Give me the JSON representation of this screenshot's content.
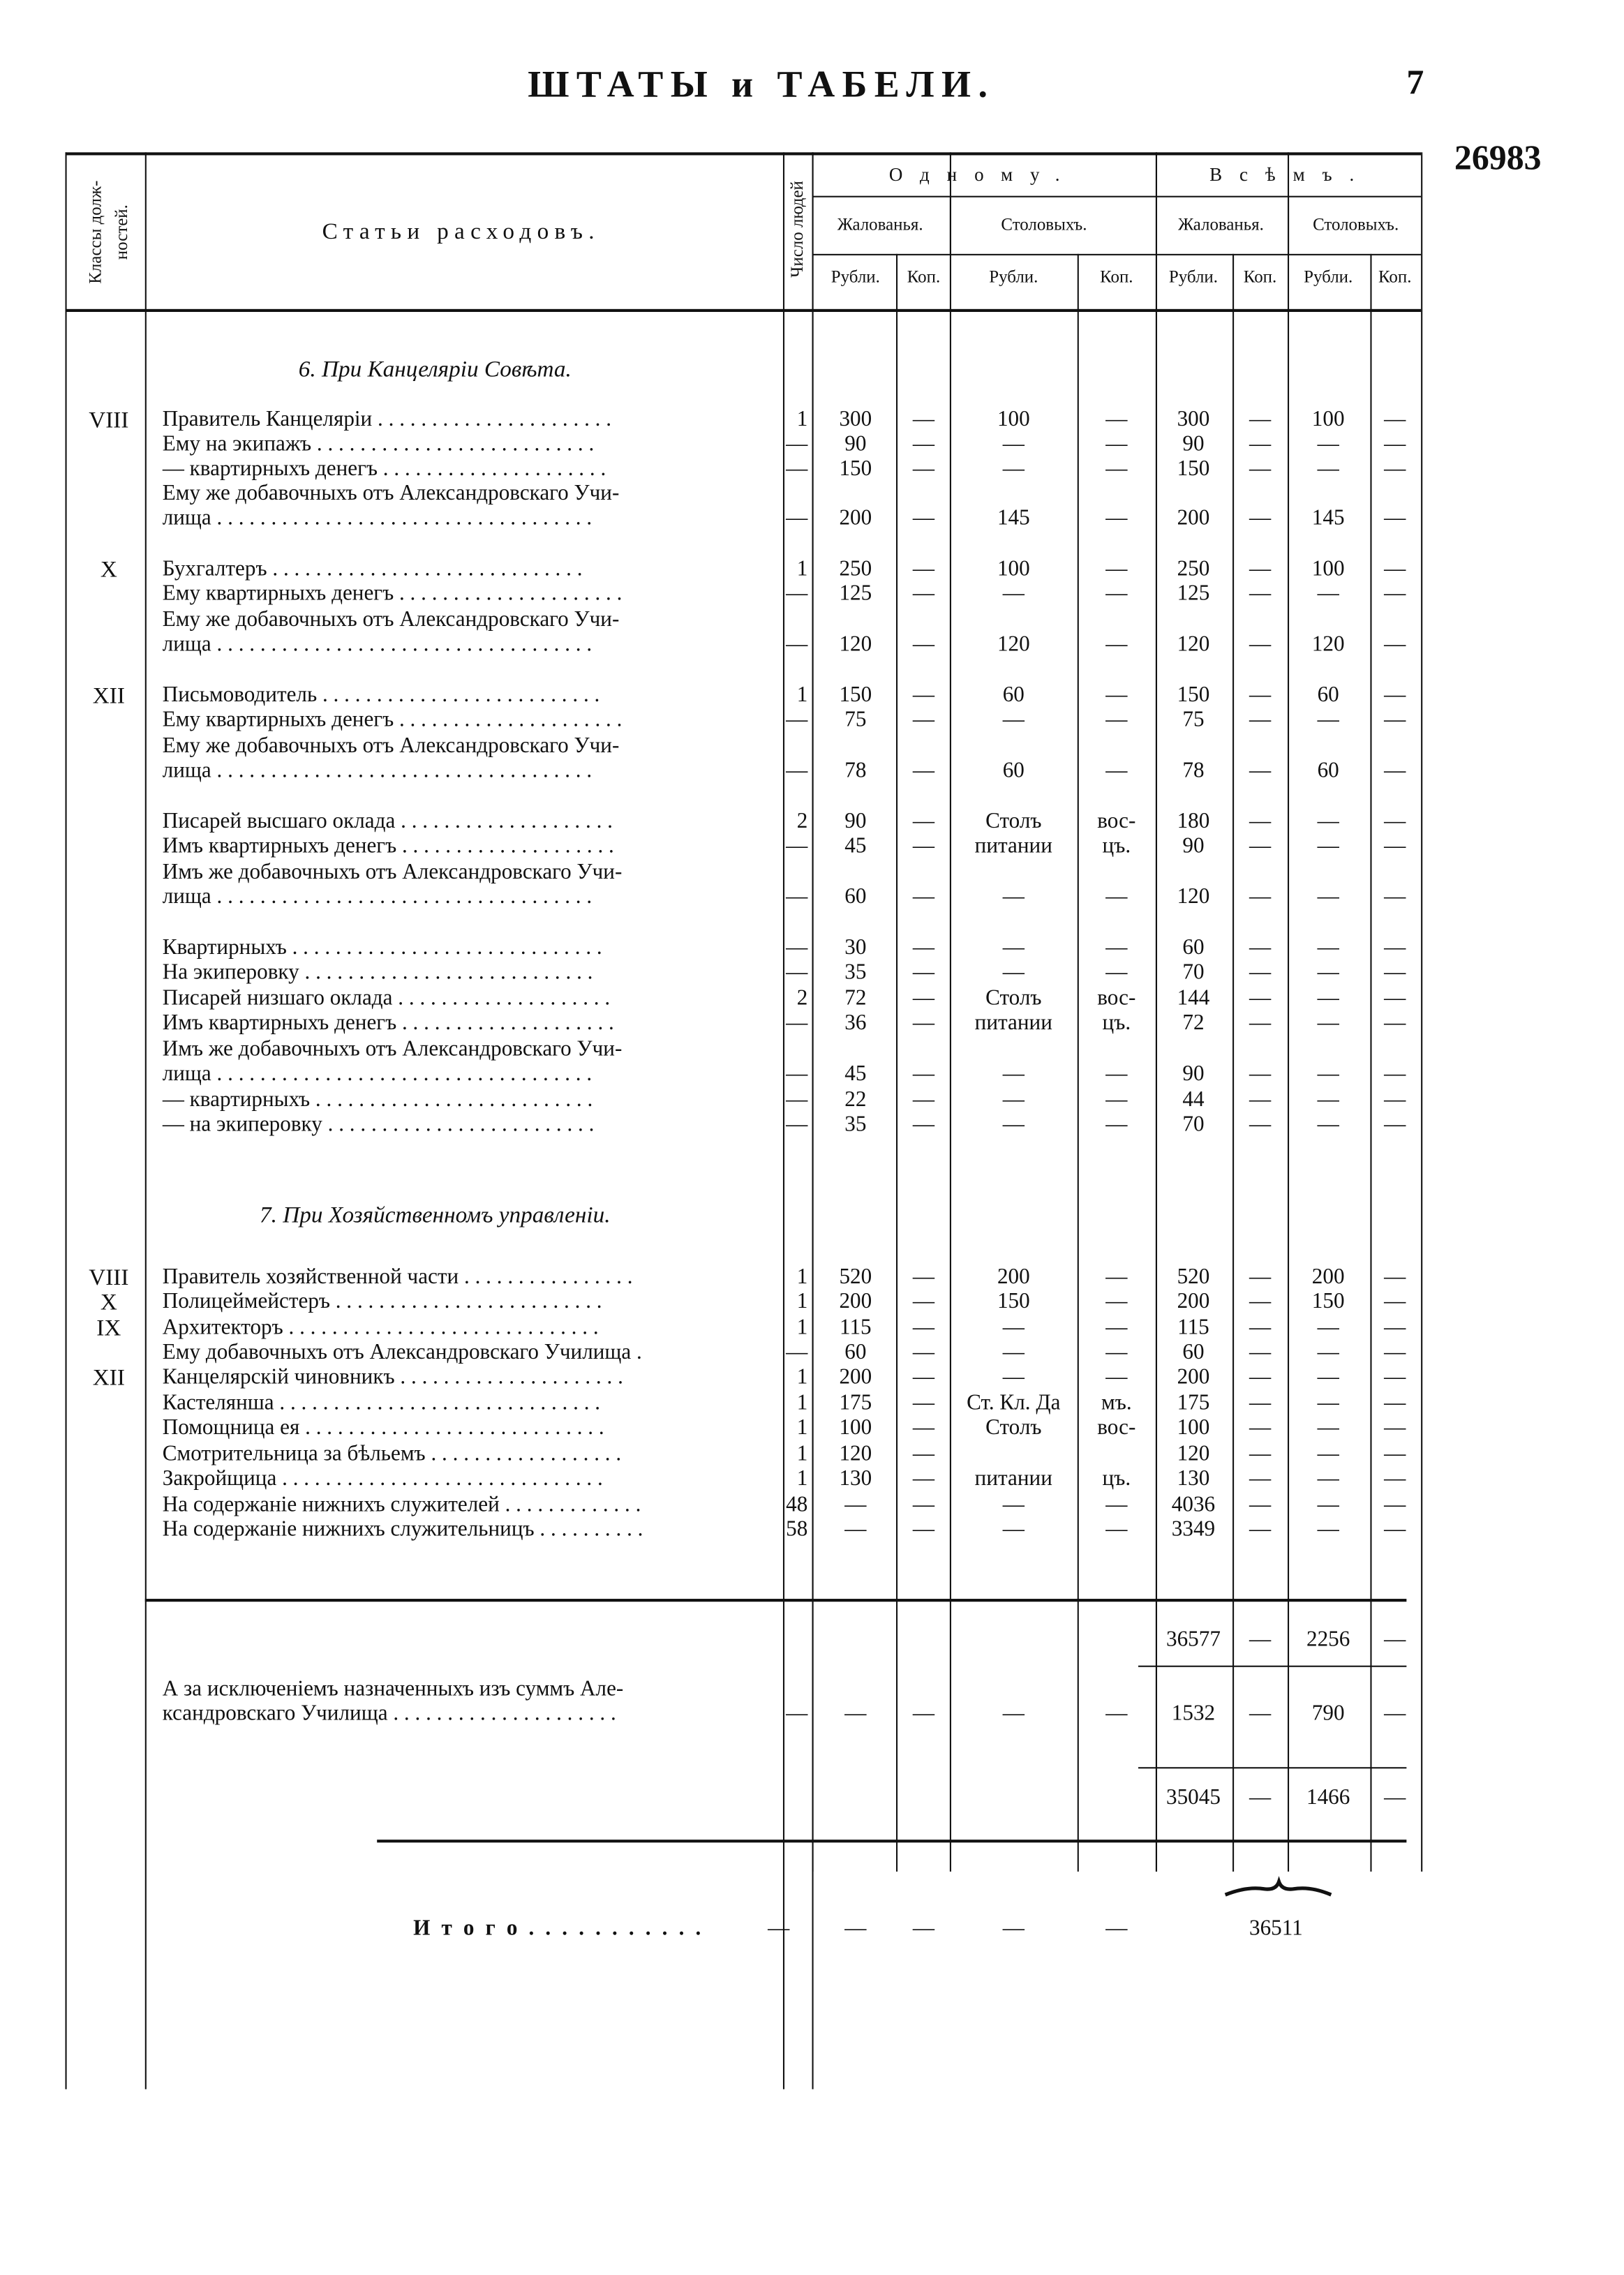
{
  "header": {
    "title": "ШТАТЫ и ТАБЕЛИ.",
    "page": "7",
    "number": "26983"
  },
  "columns": {
    "classes": [
      "Классы долж-",
      "ностей."
    ],
    "items": "Статьи расходовъ.",
    "people": "Число людей",
    "one": "Одному.",
    "all": "Всѣмъ.",
    "sub": [
      "Жалованья.",
      "Столовыхъ.",
      "Жалованья.",
      "Столовыхъ."
    ],
    "units": [
      "Рубли.",
      "Коп.",
      "Рубли.",
      "Коп.",
      "Рубли.",
      "Коп.",
      "Рубли.",
      "Коп."
    ]
  },
  "sections": [
    {
      "title": "6. При Канцеляріи Совѣта.",
      "rows": [
        {
          "class": "VIII",
          "lines": [
            "Правитель Канцеляріи . . . . . . . . . . . . . . . . . . . . . ."
          ],
          "count": "1",
          "cells": [
            "300",
            "—",
            "100",
            "—",
            "300",
            "—",
            "100",
            "—"
          ]
        },
        {
          "lines": [
            "Ему на экипажъ . . . . . . . . . . . . . . . . . . . . . . . . . ."
          ],
          "count": "—",
          "cells": [
            "90",
            "—",
            "—",
            "—",
            "90",
            "—",
            "—",
            "—"
          ]
        },
        {
          "lines": [
            "— квартирныхъ денегъ . . . . . . . . . . . . . . . . . . . . ."
          ],
          "count": "—",
          "cells": [
            "150",
            "—",
            "—",
            "—",
            "150",
            "—",
            "—",
            "—"
          ]
        },
        {
          "lines": [
            "Ему же добавочныхъ отъ Александровскаго Учи-",
            "лища . . . . . . . . . . . . . . . . . . . . . . . . . . . . . . . . . . ."
          ],
          "count": "—",
          "cells": [
            "200",
            "—",
            "145",
            "—",
            "200",
            "—",
            "145",
            "—"
          ]
        },
        {
          "class": "X",
          "lines": [
            "Бухгалтеръ . . . . . . . . . . . . . . . . . . . . . . . . . . . . ."
          ],
          "count": "1",
          "cells": [
            "250",
            "—",
            "100",
            "—",
            "250",
            "—",
            "100",
            "—"
          ]
        },
        {
          "lines": [
            "Ему квартирныхъ денегъ . . . . . . . . . . . . . . . . . . . . ."
          ],
          "count": "—",
          "cells": [
            "125",
            "—",
            "—",
            "—",
            "125",
            "—",
            "—",
            "—"
          ]
        },
        {
          "lines": [
            "Ему же добавочныхъ отъ Александровскаго Учи-",
            "лища . . . . . . . . . . . . . . . . . . . . . . . . . . . . . . . . . . ."
          ],
          "count": "—",
          "cells": [
            "120",
            "—",
            "120",
            "—",
            "120",
            "—",
            "120",
            "—"
          ]
        },
        {
          "class": "XII",
          "lines": [
            "Письмоводитель . . . . . . . . . . . . . . . . . . . . . . . . . ."
          ],
          "count": "1",
          "cells": [
            "150",
            "—",
            "60",
            "—",
            "150",
            "—",
            "60",
            "—"
          ]
        },
        {
          "lines": [
            "Ему квартирныхъ денегъ . . . . . . . . . . . . . . . . . . . . ."
          ],
          "count": "—",
          "cells": [
            "75",
            "—",
            "—",
            "—",
            "75",
            "—",
            "—",
            "—"
          ]
        },
        {
          "lines": [
            "Ему же добавочныхъ отъ Александровскаго Учи-",
            "лища . . . . . . . . . . . . . . . . . . . . . . . . . . . . . . . . . . ."
          ],
          "count": "—",
          "cells": [
            "78",
            "—",
            "60",
            "—",
            "78",
            "—",
            "60",
            "—"
          ]
        },
        {
          "lines": [
            "Писарей высшаго оклада . . . . . . . . . . . . . . . . . . . ."
          ],
          "count": "2",
          "cells": [
            "90",
            "—",
            "Столъ",
            "вос-",
            "180",
            "—",
            "—",
            "—"
          ]
        },
        {
          "lines": [
            "Имъ квартирныхъ денегъ . . . . . . . . . . . . . . . . . . . ."
          ],
          "count": "—",
          "cells": [
            "45",
            "—",
            "питании",
            "цъ.",
            "90",
            "—",
            "—",
            "—"
          ]
        },
        {
          "lines": [
            "Имъ же добавочныхъ отъ Александровскаго Учи-",
            "лища . . . . . . . . . . . . . . . . . . . . . . . . . . . . . . . . . . ."
          ],
          "count": "—",
          "cells": [
            "60",
            "—",
            "—",
            "—",
            "120",
            "—",
            "—",
            "—"
          ]
        },
        {
          "lines": [
            "Квартирныхъ . . . . . . . . . . . . . . . . . . . . . . . . . . . . ."
          ],
          "count": "—",
          "cells": [
            "30",
            "—",
            "—",
            "—",
            "60",
            "—",
            "—",
            "—"
          ]
        },
        {
          "lines": [
            "На экиперовку . . . . . . . . . . . . . . . . . . . . . . . . . . ."
          ],
          "count": "—",
          "cells": [
            "35",
            "—",
            "—",
            "—",
            "70",
            "—",
            "—",
            "—"
          ]
        },
        {
          "lines": [
            "Писарей низшаго оклада . . . . . . . . . . . . . . . . . . . ."
          ],
          "count": "2",
          "cells": [
            "72",
            "—",
            "Столъ",
            "вос-",
            "144",
            "—",
            "—",
            "—"
          ]
        },
        {
          "lines": [
            "Имъ квартирныхъ денегъ . . . . . . . . . . . . . . . . . . . ."
          ],
          "count": "—",
          "cells": [
            "36",
            "—",
            "питании",
            "цъ.",
            "72",
            "—",
            "—",
            "—"
          ]
        },
        {
          "lines": [
            "Имъ же добавочныхъ отъ Александровскаго Учи-",
            "лища . . . . . . . . . . . . . . . . . . . . . . . . . . . . . . . . . . ."
          ],
          "count": "—",
          "cells": [
            "45",
            "—",
            "—",
            "—",
            "90",
            "—",
            "—",
            "—"
          ]
        },
        {
          "lines": [
            "— квартирныхъ . . . . . . . . . . . . . . . . . . . . . . . . . ."
          ],
          "count": "—",
          "cells": [
            "22",
            "—",
            "—",
            "—",
            "44",
            "—",
            "—",
            "—"
          ]
        },
        {
          "lines": [
            "— на экиперовку . . . . . . . . . . . . . . . . . . . . . . . . ."
          ],
          "count": "—",
          "cells": [
            "35",
            "—",
            "—",
            "—",
            "70",
            "—",
            "—",
            "—"
          ]
        }
      ]
    },
    {
      "title": "7. При Хозяйственномъ управленіи.",
      "rows": [
        {
          "class": "VIII",
          "lines": [
            "Правитель хозяйственной части . . . . . . . . . . . . . . . ."
          ],
          "count": "1",
          "cells": [
            "520",
            "—",
            "200",
            "—",
            "520",
            "—",
            "200",
            "—"
          ]
        },
        {
          "class": "X",
          "lines": [
            "Полицеймейстеръ . . . . . . . . . . . . . . . . . . . . . . . . ."
          ],
          "count": "1",
          "cells": [
            "200",
            "—",
            "150",
            "—",
            "200",
            "—",
            "150",
            "—"
          ]
        },
        {
          "class": "IX",
          "lines": [
            "Архитекторъ . . . . . . . . . . . . . . . . . . . . . . . . . . . . ."
          ],
          "count": "1",
          "cells": [
            "115",
            "—",
            "—",
            "—",
            "115",
            "—",
            "—",
            "—"
          ]
        },
        {
          "lines": [
            "Ему добавочныхъ отъ Александровскаго Училища ."
          ],
          "count": "—",
          "cells": [
            "60",
            "—",
            "—",
            "—",
            "60",
            "—",
            "—",
            "—"
          ]
        },
        {
          "class": "XII",
          "lines": [
            "Канцелярскій чиновникъ . . . . . . . . . . . . . . . . . . . . ."
          ],
          "count": "1",
          "cells": [
            "200",
            "—",
            "—",
            "—",
            "200",
            "—",
            "—",
            "—"
          ]
        },
        {
          "lines": [
            "Кастелянша . . . . . . . . . . . . . . . . . . . . . . . . . . . . . ."
          ],
          "count": "1",
          "cells": [
            "175",
            "—",
            "Ст. Кл. Да",
            "мъ.",
            "175",
            "—",
            "—",
            "—"
          ]
        },
        {
          "lines": [
            "Помощница ея . . . . . . . . . . . . . . . . . . . . . . . . . . . ."
          ],
          "count": "1",
          "cells": [
            "100",
            "—",
            "Столъ",
            "вос-",
            "100",
            "—",
            "—",
            "—"
          ]
        },
        {
          "lines": [
            "Смотрительница за бѣльемъ . . . . . . . . . . . . . . . . . ."
          ],
          "count": "1",
          "cells": [
            "120",
            "—",
            null,
            null,
            "120",
            "—",
            "—",
            "—"
          ]
        },
        {
          "lines": [
            "Закройщица . . . . . . . . . . . . . . . . . . . . . . . . . . . . . ."
          ],
          "count": "1",
          "cells": [
            "130",
            "—",
            "питании",
            "цъ.",
            "130",
            "—",
            "—",
            "—"
          ]
        },
        {
          "lines": [
            "На содержаніе нижнихъ служителей . . . . . . . . . . . . ."
          ],
          "count": "48",
          "cells": [
            "—",
            "—",
            "—",
            "—",
            "4036",
            "—",
            "—",
            "—"
          ]
        },
        {
          "lines": [
            "На содержаніе нижнихъ служительницъ . . . . . . . . . ."
          ],
          "count": "58",
          "cells": [
            "—",
            "—",
            "—",
            "—",
            "3349",
            "—",
            "—",
            "—"
          ]
        }
      ]
    }
  ],
  "totals": {
    "sum": [
      "36577",
      "—",
      "2256",
      "—"
    ],
    "deduct": {
      "lines": [
        "А за исключеніемъ назначенныхъ изъ суммъ Але-",
        "ксандровскаго Училища . . . . . . . . . . . . . . . . . . . . ."
      ],
      "count": "—",
      "cells": [
        "—",
        "—",
        "—",
        "—",
        "1532",
        "—",
        "790",
        "—"
      ]
    },
    "net": [
      "35045",
      "—",
      "1466",
      "—"
    ],
    "final": {
      "label": "И т о г о . . . . . . . . . . .",
      "count": "—",
      "cells": [
        "—",
        "—",
        "—",
        "—"
      ],
      "total": "36511"
    }
  }
}
